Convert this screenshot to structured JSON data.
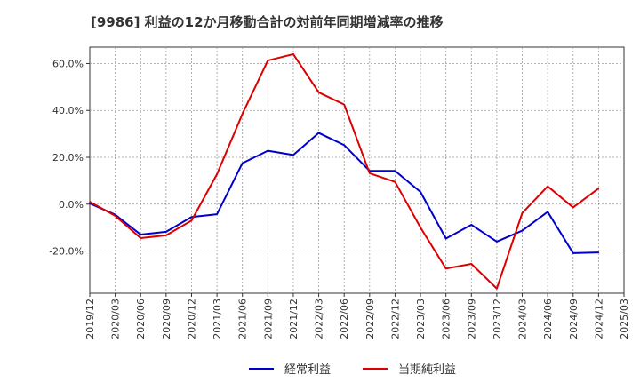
{
  "chart_data": {
    "type": "line",
    "title": "[9986]  利益の12か月移動合計の対前年同期増減率の推移",
    "xlabel": "",
    "ylabel": "",
    "ylim": [
      -38,
      67
    ],
    "yticks": [
      60,
      40,
      20,
      0,
      -20
    ],
    "ytick_labels": [
      "60.0%",
      "40.0%",
      "20.0%",
      "0.0%",
      "-20.0%"
    ],
    "categories": [
      "2019/12",
      "2020/03",
      "2020/06",
      "2020/09",
      "2020/12",
      "2021/03",
      "2021/06",
      "2021/09",
      "2021/12",
      "2022/03",
      "2022/06",
      "2022/09",
      "2022/12",
      "2023/03",
      "2023/06",
      "2023/09",
      "2023/12",
      "2024/03",
      "2024/06",
      "2024/09",
      "2024/12",
      "2025/03"
    ],
    "series": [
      {
        "name": "経常利益",
        "color": "#0000cc",
        "values": [
          0.3,
          -4.5,
          -13.0,
          -11.8,
          -5.5,
          -4.3,
          17.5,
          22.8,
          21.0,
          30.4,
          25.2,
          14.2,
          14.2,
          5.2,
          -14.7,
          -8.8,
          -16.0,
          -11.3,
          -3.3,
          -20.9,
          -20.6,
          null
        ]
      },
      {
        "name": "当期純利益",
        "color": "#dd0000",
        "values": [
          1.0,
          -5.0,
          -14.5,
          -13.3,
          -7.0,
          12.8,
          38.5,
          61.3,
          64.0,
          47.7,
          42.5,
          13.2,
          9.5,
          -10.0,
          -27.5,
          -25.5,
          -36.0,
          -3.8,
          7.6,
          -1.4,
          6.7,
          null
        ]
      }
    ],
    "grid": true,
    "legend_position": "bottom-center"
  }
}
